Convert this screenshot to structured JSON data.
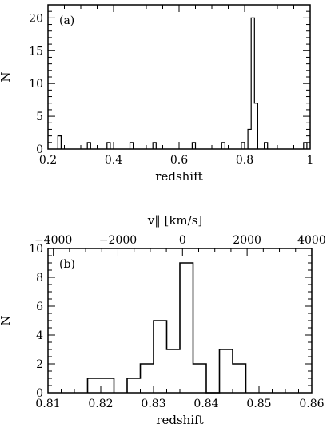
{
  "chart_data": [
    {
      "type": "histogram",
      "panel_label": "(a)",
      "xlabel": "redshift",
      "ylabel": "N",
      "xlim": [
        0.2,
        1.0
      ],
      "ylim": [
        0,
        22
      ],
      "xticks": [
        "0.2",
        "0.4",
        "0.6",
        "0.8",
        "1"
      ],
      "xtick_values": [
        0.2,
        0.4,
        0.6,
        0.8,
        1.0
      ],
      "yticks": [
        "0",
        "5",
        "10",
        "15",
        "20"
      ],
      "ytick_values": [
        0,
        5,
        10,
        15,
        20
      ],
      "bin_width": 0.01,
      "bins": [
        {
          "start": 0.23,
          "count": 2
        },
        {
          "start": 0.32,
          "count": 1
        },
        {
          "start": 0.38,
          "count": 1
        },
        {
          "start": 0.45,
          "count": 1
        },
        {
          "start": 0.52,
          "count": 1
        },
        {
          "start": 0.64,
          "count": 1
        },
        {
          "start": 0.73,
          "count": 1
        },
        {
          "start": 0.79,
          "count": 1
        },
        {
          "start": 0.81,
          "count": 3
        },
        {
          "start": 0.82,
          "count": 20
        },
        {
          "start": 0.83,
          "count": 7
        },
        {
          "start": 0.86,
          "count": 1
        },
        {
          "start": 0.98,
          "count": 1
        }
      ]
    },
    {
      "type": "histogram",
      "panel_label": "(b)",
      "xlabel": "redshift",
      "ylabel": "N",
      "top_axis_label": "v‖  [km/s]",
      "xlim": [
        0.81,
        0.86
      ],
      "ylim": [
        0,
        10
      ],
      "xticks": [
        "0.81",
        "0.82",
        "0.83",
        "0.84",
        "0.85",
        "0.86"
      ],
      "xtick_values": [
        0.81,
        0.82,
        0.83,
        0.84,
        0.85,
        0.86
      ],
      "yticks": [
        "0",
        "2",
        "4",
        "6",
        "8",
        "10"
      ],
      "ytick_values": [
        0,
        2,
        4,
        6,
        8,
        10
      ],
      "top_ticks": [
        "−4000",
        "−2000",
        "0",
        "2000",
        "4000"
      ],
      "top_tick_values": [
        -4000,
        -2000,
        0,
        2000,
        4000
      ],
      "top_axis_center_z": 0.8355,
      "bin_width": 0.0025,
      "bins": [
        {
          "start": 0.8175,
          "count": 1
        },
        {
          "start": 0.82,
          "count": 1
        },
        {
          "start": 0.825,
          "count": 1
        },
        {
          "start": 0.8275,
          "count": 2
        },
        {
          "start": 0.83,
          "count": 5
        },
        {
          "start": 0.8325,
          "count": 3
        },
        {
          "start": 0.835,
          "count": 9
        },
        {
          "start": 0.8375,
          "count": 2
        },
        {
          "start": 0.84,
          "count": 0
        },
        {
          "start": 0.8425,
          "count": 3
        },
        {
          "start": 0.845,
          "count": 2
        }
      ]
    }
  ]
}
